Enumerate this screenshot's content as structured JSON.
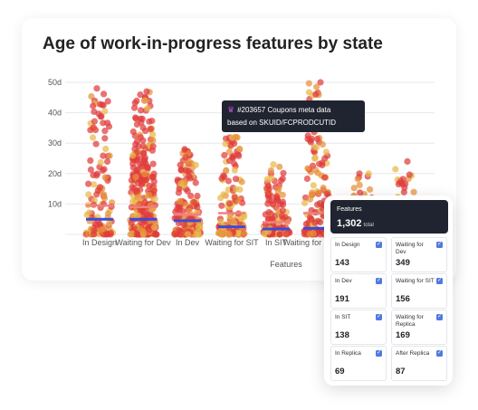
{
  "title": "Age of work-in-progress features by state",
  "tooltip": {
    "icon": "trophy-icon",
    "line1": "#203657  Coupons meta data",
    "line2": "based on SKUID/FCPRODCUTID"
  },
  "panel": {
    "label": "Features",
    "total": "1,302",
    "total_suffix": "total",
    "tiles": [
      {
        "name": "In Design",
        "value": "143",
        "checked": true
      },
      {
        "name": "Waiting for Dev",
        "value": "349",
        "checked": true
      },
      {
        "name": "In Dev",
        "value": "191",
        "checked": true
      },
      {
        "name": "Waiting for SIT",
        "value": "156",
        "checked": true
      },
      {
        "name": "In SIT",
        "value": "138",
        "checked": true
      },
      {
        "name": "Waiting for Replica",
        "value": "169",
        "checked": true
      },
      {
        "name": "In Replica",
        "value": "69",
        "checked": true
      },
      {
        "name": "After Replica",
        "value": "87",
        "checked": true
      }
    ]
  },
  "colors": {
    "point_red": "#e03c3c",
    "point_orange": "#e8923a",
    "point_yellow": "#e8b84a",
    "median": "#3d4bd6",
    "mean": "#f08080"
  },
  "chart_data": {
    "type": "scatter",
    "title": "Age of work-in-progress features by state",
    "xlabel": "Features",
    "ylabel": "",
    "ylim": [
      0,
      50
    ],
    "yticks": [
      "",
      "10d",
      "20d",
      "30d",
      "40d",
      "50d"
    ],
    "categories": [
      "In Design",
      "Waiting for Dev",
      "In Dev",
      "Waiting for SIT",
      "In SIT",
      "Waiting for Replica",
      "In Replica",
      "After Replica"
    ],
    "tick_labels": [
      "In Design",
      "Waiting for Dev",
      "In Dev",
      "Waiting for SIT",
      "In SIT",
      "Waiting for Replica",
      "",
      ""
    ],
    "counts": [
      143,
      349,
      191,
      156,
      138,
      169,
      69,
      87
    ],
    "medians": [
      5,
      5,
      4.5,
      2.5,
      1.8,
      2,
      2,
      2
    ],
    "means": [
      9.5,
      9,
      6.5,
      7,
      4,
      7,
      5,
      5
    ],
    "max_values": [
      48,
      47,
      28,
      32,
      23,
      50,
      20,
      24
    ]
  }
}
